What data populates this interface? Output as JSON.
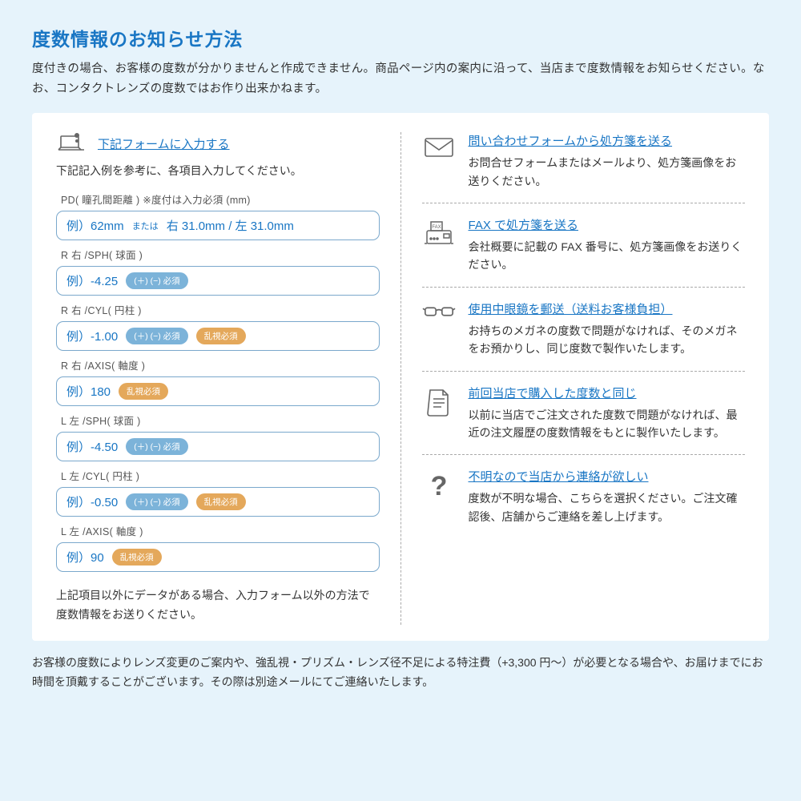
{
  "title": "度数情報のお知らせ方法",
  "intro": "度付きの場合、お客様の度数が分かりませんと作成できません。商品ページ内の案内に沿って、当店まで度数情報をお知らせください。なお、コンタクトレンズの度数ではお作り出来かねます。",
  "left": {
    "headerLink": "下記フォームに入力する",
    "sub": "下記記入例を参考に、各項目入力してください。",
    "fields": [
      {
        "label": "PD( 瞳孔間距離 ) ※度付は入力必須 (mm)",
        "ex": "例）62mm",
        "extra": "または 右 31.0mm / 左 31.0mm",
        "pills": []
      },
      {
        "label": "R 右 /SPH( 球面 )",
        "ex": "例）-4.25",
        "pills": [
          {
            "t": "(＋) (−) 必須",
            "c": "blue"
          }
        ]
      },
      {
        "label": "R 右 /CYL( 円柱 )",
        "ex": "例）-1.00",
        "pills": [
          {
            "t": "(＋) (−) 必須",
            "c": "blue"
          },
          {
            "t": "乱視必須",
            "c": "orange"
          }
        ]
      },
      {
        "label": "R 右 /AXIS( 軸度 )",
        "ex": "例）180",
        "pills": [
          {
            "t": "乱視必須",
            "c": "orange"
          }
        ]
      },
      {
        "label": "L 左 /SPH( 球面 )",
        "ex": "例）-4.50",
        "pills": [
          {
            "t": "(＋) (−) 必須",
            "c": "blue"
          }
        ]
      },
      {
        "label": "L 左 /CYL( 円柱 )",
        "ex": "例）-0.50",
        "pills": [
          {
            "t": "(＋) (−) 必須",
            "c": "blue"
          },
          {
            "t": "乱視必須",
            "c": "orange"
          }
        ]
      },
      {
        "label": "L 左 /AXIS( 軸度 )",
        "ex": "例）90",
        "pills": [
          {
            "t": "乱視必須",
            "c": "orange"
          }
        ]
      }
    ],
    "footer": "上記項目以外にデータがある場合、入力フォーム以外の方法で度数情報をお送りください。"
  },
  "right": {
    "items": [
      {
        "icon": "mail",
        "title": "問い合わせフォームから処方箋を送る",
        "desc": "お問合せフォームまたはメールより、処方箋画像をお送りください。"
      },
      {
        "icon": "fax",
        "title": "FAX で処方箋を送る",
        "desc": "会社概要に記載の FAX 番号に、処方箋画像をお送りください。"
      },
      {
        "icon": "glasses",
        "title": "使用中眼鏡を郵送（送料お客様負担）",
        "desc": "お持ちのメガネの度数で問題がなければ、そのメガネをお預かりし、同じ度数で製作いたします。"
      },
      {
        "icon": "doc",
        "title": "前回当店で購入した度数と同じ",
        "desc": "以前に当店でご注文された度数で問題がなければ、最近の注文履歴の度数情報をもとに製作いたします。"
      },
      {
        "icon": "question",
        "title": "不明なので当店から連絡が欲しい",
        "desc": "度数が不明な場合、こちらを選択ください。ご注文確認後、店舗からご連絡を差し上げます。"
      }
    ]
  },
  "bottom": "お客様の度数によりレンズ変更のご案内や、強乱視・プリズム・レンズ径不足による特注費（+3,300 円〜）が必要となる場合や、お届けまでにお時間を頂戴することがございます。その際は別途メールにてご連絡いたします。",
  "colors": {
    "primary": "#1976c4",
    "border": "#7aa8cc",
    "pillBlue": "#7cb3d9",
    "pillOrange": "#e4a85b",
    "bg": "#e6f3fb",
    "iconStroke": "#666"
  }
}
